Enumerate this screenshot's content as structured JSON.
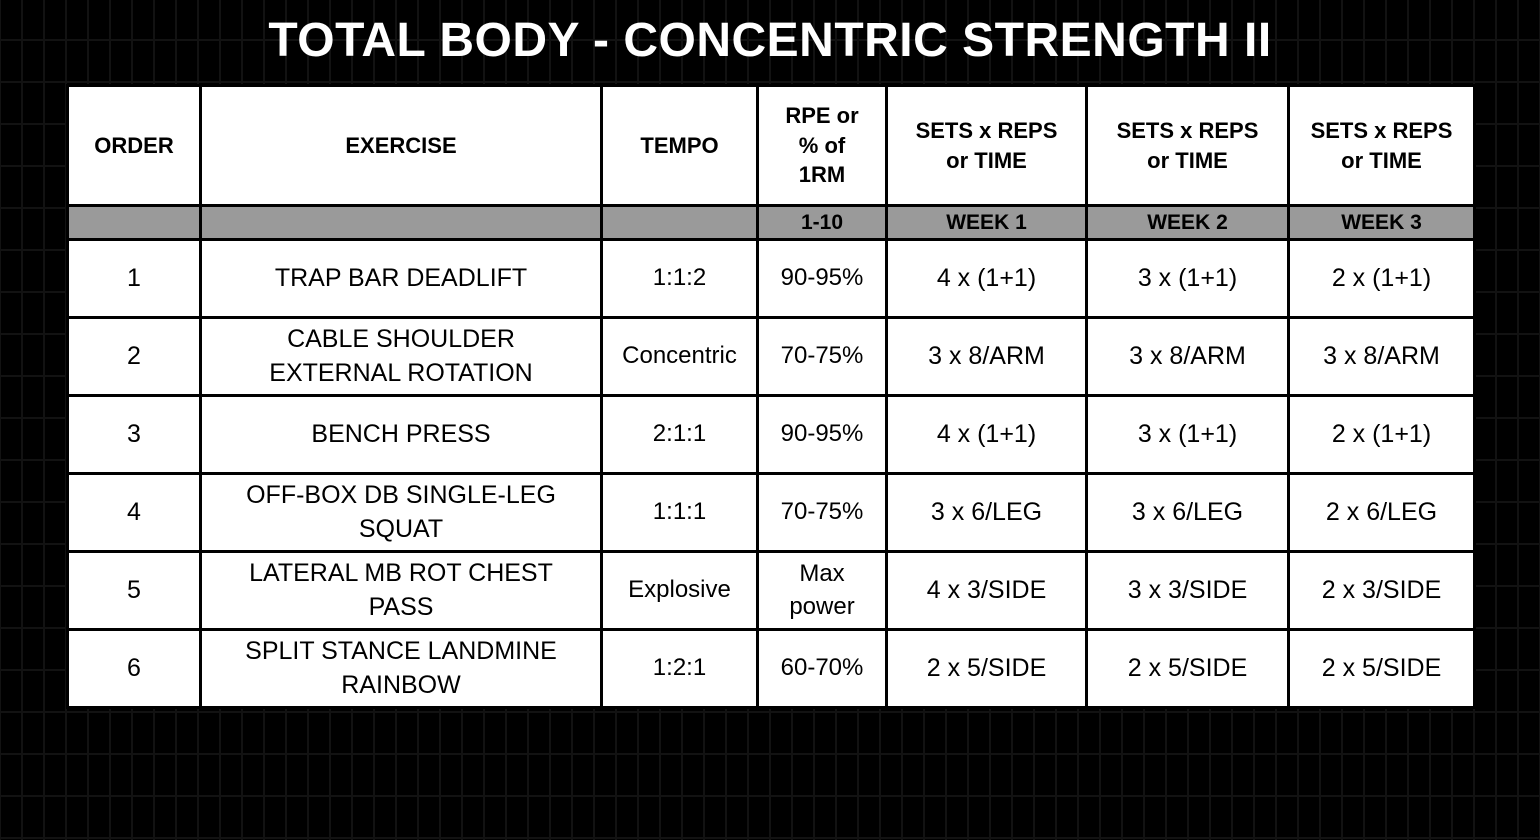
{
  "title": "TOTAL BODY - CONCENTRIC STRENGTH II",
  "colors": {
    "background": "#000000",
    "background_gridline": "#121212",
    "cell_background": "#ffffff",
    "subheader_band": "#9a9a9a",
    "border": "#000000",
    "title_text": "#ffffff",
    "cell_text": "#000000"
  },
  "table": {
    "columns": [
      {
        "key": "order",
        "header": "ORDER",
        "subheader": ""
      },
      {
        "key": "exercise",
        "header": "EXERCISE",
        "subheader": ""
      },
      {
        "key": "tempo",
        "header": "TEMPO",
        "subheader": ""
      },
      {
        "key": "rpe",
        "header": "RPE or\n% of\n1RM",
        "subheader": "1-10"
      },
      {
        "key": "week1",
        "header": "SETS x REPS\nor TIME",
        "subheader": "WEEK 1"
      },
      {
        "key": "week2",
        "header": "SETS x REPS\nor TIME",
        "subheader": "WEEK 2"
      },
      {
        "key": "week3",
        "header": "SETS x REPS\nor TIME",
        "subheader": "WEEK 3"
      }
    ],
    "rows": [
      {
        "order": "1",
        "exercise": "TRAP BAR DEADLIFT",
        "tempo": "1:1:2",
        "rpe": "90-95%",
        "week1": "4 x (1+1)",
        "week2": "3 x (1+1)",
        "week3": "2 x (1+1)"
      },
      {
        "order": "2",
        "exercise": "CABLE SHOULDER\nEXTERNAL ROTATION",
        "tempo": "Concentric",
        "rpe": "70-75%",
        "week1": "3 x 8/ARM",
        "week2": "3 x 8/ARM",
        "week3": "3 x 8/ARM"
      },
      {
        "order": "3",
        "exercise": "BENCH PRESS",
        "tempo": "2:1:1",
        "rpe": "90-95%",
        "week1": "4 x (1+1)",
        "week2": "3 x (1+1)",
        "week3": "2 x (1+1)"
      },
      {
        "order": "4",
        "exercise": "OFF-BOX DB SINGLE-LEG\nSQUAT",
        "tempo": "1:1:1",
        "rpe": "70-75%",
        "week1": "3 x 6/LEG",
        "week2": "3 x 6/LEG",
        "week3": "2 x 6/LEG"
      },
      {
        "order": "5",
        "exercise": "LATERAL MB ROT CHEST\nPASS",
        "tempo": "Explosive",
        "rpe": "Max\npower",
        "week1": "4 x 3/SIDE",
        "week2": "3 x 3/SIDE",
        "week3": "2 x 3/SIDE"
      },
      {
        "order": "6",
        "exercise": "SPLIT STANCE LANDMINE\nRAINBOW",
        "tempo": "1:2:1",
        "rpe": "60-70%",
        "week1": "2 x 5/SIDE",
        "week2": "2 x 5/SIDE",
        "week3": "2 x 5/SIDE"
      }
    ]
  }
}
